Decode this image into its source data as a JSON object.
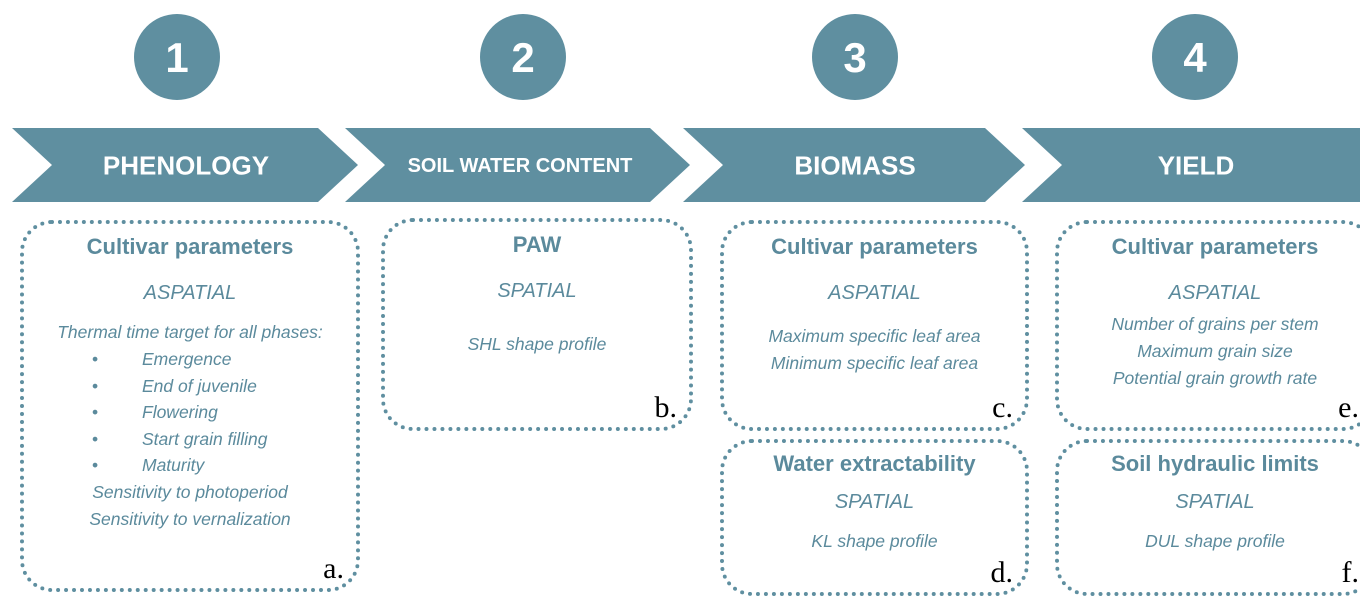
{
  "steps": [
    {
      "number": "1",
      "label": "PHENOLOGY",
      "boxes": [
        {
          "title": "Cultivar parameters",
          "scope": "ASPATIAL",
          "lines": [
            "Thermal time target for all phases:"
          ],
          "bullets": [
            "Emergence",
            "End of juvenile",
            "Flowering",
            "Start grain filling",
            "Maturity"
          ],
          "more_lines": [
            "Sensitivity to photoperiod",
            "Sensitivity to vernalization"
          ],
          "letter": "a."
        }
      ]
    },
    {
      "number": "2",
      "label": "SOIL WATER CONTENT",
      "boxes": [
        {
          "title": "PAW",
          "scope": "SPATIAL",
          "lines": [
            "SHL shape profile"
          ],
          "letter": "b."
        }
      ]
    },
    {
      "number": "3",
      "label": "BIOMASS",
      "boxes": [
        {
          "title": "Cultivar parameters",
          "scope": "ASPATIAL",
          "lines": [
            "Maximum specific leaf area",
            "Minimum specific leaf area"
          ],
          "letter": "c."
        },
        {
          "title": "Water extractability",
          "scope": "SPATIAL",
          "lines": [
            "KL shape profile"
          ],
          "letter": "d."
        }
      ]
    },
    {
      "number": "4",
      "label": "YIELD",
      "boxes": [
        {
          "title": "Cultivar parameters",
          "scope": "ASPATIAL",
          "lines": [
            "Number of grains per stem",
            "Maximum grain size",
            "Potential grain growth rate"
          ],
          "letter": "e."
        },
        {
          "title": "Soil hydraulic limits",
          "scope": "SPATIAL",
          "lines": [
            "DUL shape profile"
          ],
          "letter": "f."
        }
      ]
    }
  ]
}
